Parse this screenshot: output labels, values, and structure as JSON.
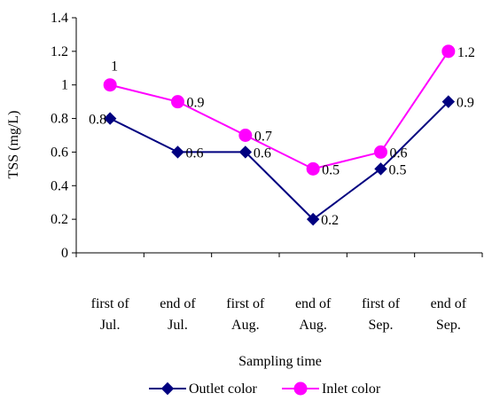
{
  "chart_data": {
    "type": "line",
    "title": "",
    "xlabel": "Sampling time",
    "ylabel": "TSS (mg/L)",
    "ylim": [
      0,
      1.4
    ],
    "yticks": [
      0,
      0.2,
      0.4,
      0.6,
      0.8,
      1,
      1.2,
      1.4
    ],
    "ytick_labels": [
      "0",
      "0.2",
      "0.4",
      "0.6",
      "0.8",
      "1",
      "1.2",
      "1.4"
    ],
    "categories": [
      [
        "first of",
        "Jul."
      ],
      [
        "end of",
        "Jul."
      ],
      [
        "first of",
        "Aug."
      ],
      [
        "end of",
        "Aug."
      ],
      [
        "first of",
        "Sep."
      ],
      [
        "end of",
        "Sep."
      ]
    ],
    "grid": false,
    "legend": "bottom",
    "series": [
      {
        "name": "Outlet color",
        "values": [
          0.8,
          0.6,
          0.6,
          0.2,
          0.5,
          0.9
        ],
        "labels": [
          "0.8",
          "0.6",
          "0.6",
          "0.2",
          "0.5",
          "0.9"
        ],
        "color": "#000080",
        "marker": "diamond"
      },
      {
        "name": "Inlet color",
        "values": [
          1,
          0.9,
          0.7,
          0.5,
          0.6,
          1.2
        ],
        "labels": [
          "1",
          "0.9",
          "0.7",
          "0.5",
          "0.6",
          "1.2"
        ],
        "color": "#FF00FF",
        "marker": "circle"
      }
    ]
  }
}
